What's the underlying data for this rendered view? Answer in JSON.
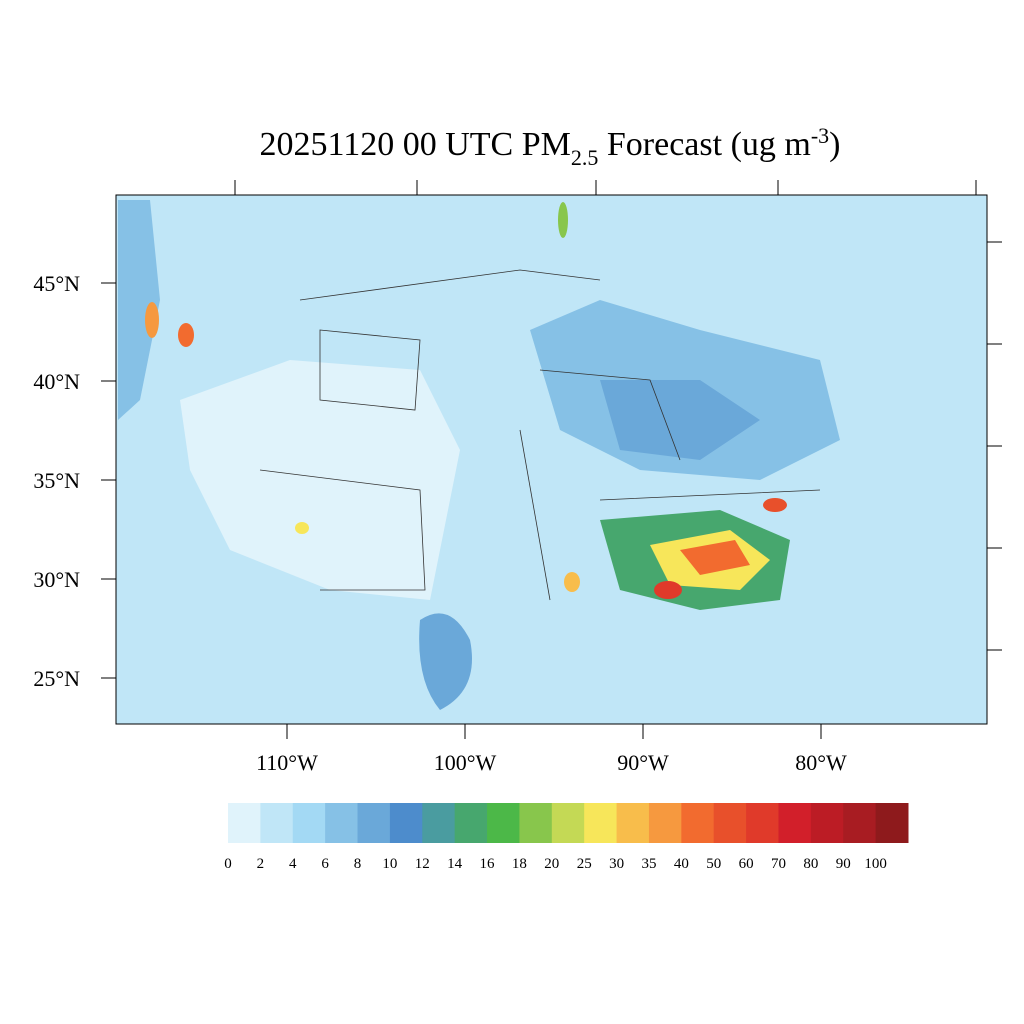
{
  "title": {
    "main": "20251120 00 UTC PM",
    "subscript": "2.5",
    "rest": " Forecast (ug m",
    "superscript": "-3",
    "end": ")"
  },
  "lat_labels": [
    "45°N",
    "40°N",
    "35°N",
    "30°N",
    "25°N"
  ],
  "lon_labels": [
    "110°W",
    "100°W",
    "90°W",
    "80°W"
  ],
  "colorbar": {
    "levels": [
      0,
      2,
      4,
      6,
      8,
      10,
      12,
      14,
      16,
      18,
      20,
      25,
      30,
      35,
      40,
      50,
      60,
      70,
      80,
      90,
      100
    ],
    "colors": [
      "#e0f3fb",
      "#c0e6f7",
      "#a3d9f4",
      "#86c1e6",
      "#6aa8d9",
      "#4d8ccc",
      "#4a9ca0",
      "#47a76e",
      "#4cb848",
      "#88c64c",
      "#c4d955",
      "#f7e65a",
      "#f8bd4b",
      "#f6993f",
      "#f26b2f",
      "#e8502b",
      "#e03a2a",
      "#d21f2a",
      "#bc1c25",
      "#a81c22",
      "#8e1a1c"
    ]
  }
}
